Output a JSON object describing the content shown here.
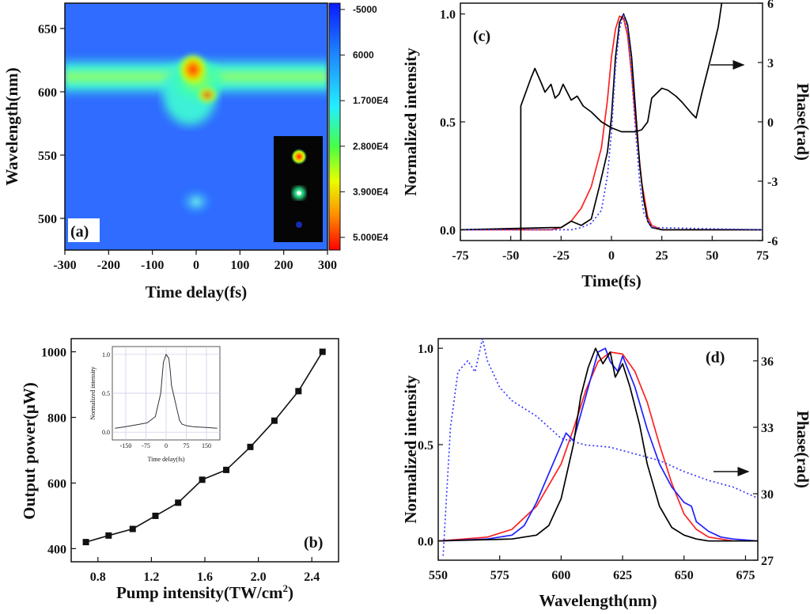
{
  "colors": {
    "red": "#ff2020",
    "black": "#000000",
    "blue": "#2020ff",
    "blue_dotted": "#3a3aff"
  },
  "chart_data": [
    {
      "panel": "(a)",
      "type": "heatmap",
      "xlabel": "Time delay(fs)",
      "ylabel": "Wavelength(nm)",
      "xlim": [
        -300,
        300
      ],
      "ylim": [
        475,
        670
      ],
      "xticks": [
        "-300",
        "-200",
        "-100",
        "0",
        "100",
        "200",
        "300"
      ],
      "yticks": [
        "500",
        "550",
        "600",
        "650"
      ],
      "colorbar": [
        "-5000",
        "6000",
        "1.700E4",
        "2.800E4",
        "3.900E4",
        "5.000E4"
      ],
      "features": [
        {
          "name": "main band",
          "center_wavelength": 615,
          "width": 14,
          "intensity": 22000
        },
        {
          "name": "peak region",
          "time": [
            -40,
            50
          ],
          "wavelength": [
            590,
            630
          ],
          "intensity": 46000
        },
        {
          "name": "lower blob",
          "time": [
            -10,
            30
          ],
          "wavelength": [
            500,
            525
          ],
          "intensity": 8000
        }
      ],
      "inset": "three beam spots (red, green, blue)"
    },
    {
      "panel": "(c)",
      "type": "line",
      "xlabel": "Time(fs)",
      "ylabel": "Normalized intensity",
      "y2label": "Phase(rad)",
      "xlim": [
        -75,
        75
      ],
      "ylim": [
        -0.05,
        1.05
      ],
      "y2lim": [
        -6,
        6
      ],
      "xticks": [
        "-75",
        "-50",
        "-25",
        "0",
        "25",
        "50",
        "75"
      ],
      "yticks": [
        "0.0",
        "0.5",
        "1.0"
      ],
      "y2ticks": [
        "-6",
        "-3",
        "0",
        "3",
        "6"
      ],
      "series": [
        {
          "name": "red",
          "color": "#ff2020",
          "x": [
            -75,
            -30,
            -25,
            -20,
            -15,
            -10,
            -5,
            -2,
            0,
            2,
            4,
            6,
            8,
            10,
            12,
            15,
            18,
            20,
            25,
            75
          ],
          "y": [
            0,
            0,
            0.01,
            0.04,
            0.1,
            0.2,
            0.38,
            0.6,
            0.8,
            0.93,
            0.99,
            0.98,
            0.9,
            0.72,
            0.5,
            0.22,
            0.06,
            0.02,
            0,
            0
          ]
        },
        {
          "name": "black",
          "color": "#000000",
          "x": [
            -75,
            -30,
            -25,
            -20,
            -15,
            -10,
            -6,
            -4,
            -2,
            0,
            2,
            4,
            6,
            8,
            10,
            12,
            14,
            16,
            18,
            20,
            25,
            75
          ],
          "y": [
            0,
            0.01,
            0.01,
            0.04,
            0.02,
            0.05,
            0.2,
            0.28,
            0.36,
            0.52,
            0.8,
            0.96,
            1.0,
            0.95,
            0.8,
            0.55,
            0.3,
            0.14,
            0.04,
            0.01,
            0,
            0
          ]
        },
        {
          "name": "blue dotted",
          "color": "#3a3aff",
          "dashed": true,
          "x": [
            -75,
            -20,
            -15,
            -10,
            -5,
            -2,
            0,
            2,
            4,
            6,
            8,
            10,
            12,
            14,
            16,
            20,
            75
          ],
          "y": [
            0,
            0,
            0.01,
            0.03,
            0.09,
            0.25,
            0.45,
            0.75,
            0.93,
            1.0,
            0.93,
            0.72,
            0.45,
            0.22,
            0.08,
            0.01,
            0
          ]
        },
        {
          "name": "phase",
          "axis": "y2",
          "color": "#000000",
          "x": [
            -45,
            -45,
            -40,
            -38,
            -35,
            -33,
            -30,
            -28,
            -26,
            -24,
            -20,
            -17,
            -14,
            -10,
            -5,
            0,
            5,
            10,
            12,
            15,
            18,
            20,
            25,
            28,
            32,
            35,
            40,
            42,
            45,
            50,
            53,
            55
          ],
          "y": [
            -6,
            0.8,
            2.2,
            2.7,
            2.0,
            1.5,
            1.9,
            1.2,
            1.4,
            1.9,
            1.1,
            1.3,
            0.8,
            0.5,
            0,
            -0.3,
            -0.5,
            -0.5,
            -0.5,
            -0.4,
            0,
            1.2,
            1.7,
            1.6,
            1.3,
            1.0,
            0.4,
            0.2,
            1.5,
            3.5,
            4.8,
            6.2
          ]
        }
      ],
      "annotation": "arrow points to right axis (phase)"
    },
    {
      "panel": "(b)",
      "type": "line",
      "xlabel": "Pump intensity(TW/cm²)",
      "xlabel_main": "Pump intensity(TW/cm",
      "xlabel_sup": "2",
      "xlabel_end": ")",
      "ylabel": "Output power(μW)",
      "xlim": [
        0.6,
        2.6
      ],
      "ylim": [
        360,
        1040
      ],
      "xticks": [
        "0.8",
        "1.2",
        "1.6",
        "2.0",
        "2.4"
      ],
      "yticks": [
        "400",
        "600",
        "800",
        "1000"
      ],
      "series": [
        {
          "name": "output power",
          "marker": "square",
          "x": [
            0.71,
            0.88,
            1.06,
            1.23,
            1.4,
            1.58,
            1.76,
            1.94,
            2.12,
            2.3,
            2.48
          ],
          "y": [
            420,
            440,
            460,
            500,
            540,
            610,
            640,
            710,
            790,
            880,
            1000
          ]
        }
      ],
      "inset": {
        "xlabel": "Time delay(fs)",
        "ylabel": "Normalized intensity",
        "xlim": [
          -200,
          200
        ],
        "ylim": [
          -0.1,
          1.1
        ],
        "xticks": [
          "-150",
          "-75",
          "0",
          "75",
          "150"
        ],
        "yticks": [
          "0.0",
          "0.5",
          "1.0"
        ],
        "x": [
          -190,
          -150,
          -100,
          -70,
          -40,
          -20,
          -10,
          0,
          10,
          15,
          20,
          30,
          40,
          50,
          60,
          80,
          100,
          150,
          190
        ],
        "y": [
          0.05,
          0.07,
          0.1,
          0.12,
          0.2,
          0.5,
          0.9,
          1.0,
          0.95,
          0.8,
          0.6,
          0.45,
          0.3,
          0.15,
          0.1,
          0.08,
          0.07,
          0.06,
          0.05
        ]
      }
    },
    {
      "panel": "(d)",
      "type": "line",
      "xlabel": "Wavelength(nm)",
      "ylabel": "Normalized intensity",
      "y2label": "Phase(rad)",
      "xlim": [
        550,
        680
      ],
      "ylim": [
        -0.1,
        1.05
      ],
      "y2lim": [
        27,
        37
      ],
      "xticks": [
        "550",
        "575",
        "600",
        "625",
        "650",
        "675"
      ],
      "yticks": [
        "0.0",
        "0.5",
        "1.0"
      ],
      "y2ticks": [
        "27",
        "30",
        "33",
        "36"
      ],
      "series": [
        {
          "name": "red",
          "color": "#ff2020",
          "x": [
            550,
            570,
            580,
            590,
            600,
            605,
            610,
            615,
            620,
            625,
            630,
            635,
            640,
            645,
            650,
            655,
            660,
            670,
            680
          ],
          "y": [
            0,
            0.02,
            0.06,
            0.18,
            0.4,
            0.58,
            0.78,
            0.93,
            0.98,
            0.97,
            0.88,
            0.72,
            0.5,
            0.3,
            0.14,
            0.06,
            0.02,
            0,
            0
          ]
        },
        {
          "name": "blue",
          "color": "#2020ff",
          "x": [
            550,
            570,
            580,
            585,
            590,
            595,
            600,
            602,
            605,
            610,
            615,
            618,
            620,
            623,
            625,
            630,
            635,
            640,
            645,
            650,
            653,
            655,
            660,
            665,
            670,
            680
          ],
          "y": [
            0,
            0.01,
            0.03,
            0.08,
            0.2,
            0.35,
            0.5,
            0.56,
            0.52,
            0.75,
            0.98,
            1.0,
            0.93,
            0.88,
            0.96,
            0.8,
            0.58,
            0.4,
            0.28,
            0.2,
            0.18,
            0.1,
            0.05,
            0.02,
            0.01,
            0
          ]
        },
        {
          "name": "black",
          "color": "#000000",
          "x": [
            550,
            580,
            590,
            595,
            600,
            605,
            608,
            611,
            614,
            617,
            620,
            622,
            625,
            628,
            632,
            635,
            640,
            645,
            650,
            655,
            660,
            680
          ],
          "y": [
            0,
            0.01,
            0.03,
            0.08,
            0.22,
            0.5,
            0.75,
            0.9,
            1.0,
            0.92,
            0.98,
            0.85,
            0.92,
            0.8,
            0.6,
            0.4,
            0.18,
            0.07,
            0.03,
            0.01,
            0,
            0
          ]
        },
        {
          "name": "phase dotted",
          "axis": "y2",
          "color": "#3a3aff",
          "dashed": true,
          "x": [
            552,
            555,
            558,
            562,
            565,
            568,
            570,
            575,
            580,
            590,
            600,
            610,
            620,
            630,
            640,
            650,
            660,
            670,
            680
          ],
          "y": [
            27.2,
            33,
            35.5,
            36,
            35.5,
            37,
            36,
            34.8,
            34.2,
            33.5,
            32.5,
            32.2,
            32.1,
            31.8,
            31.5,
            31,
            30.6,
            30.3,
            29.8
          ]
        }
      ],
      "annotation": "arrow points to right axis (phase)"
    }
  ]
}
